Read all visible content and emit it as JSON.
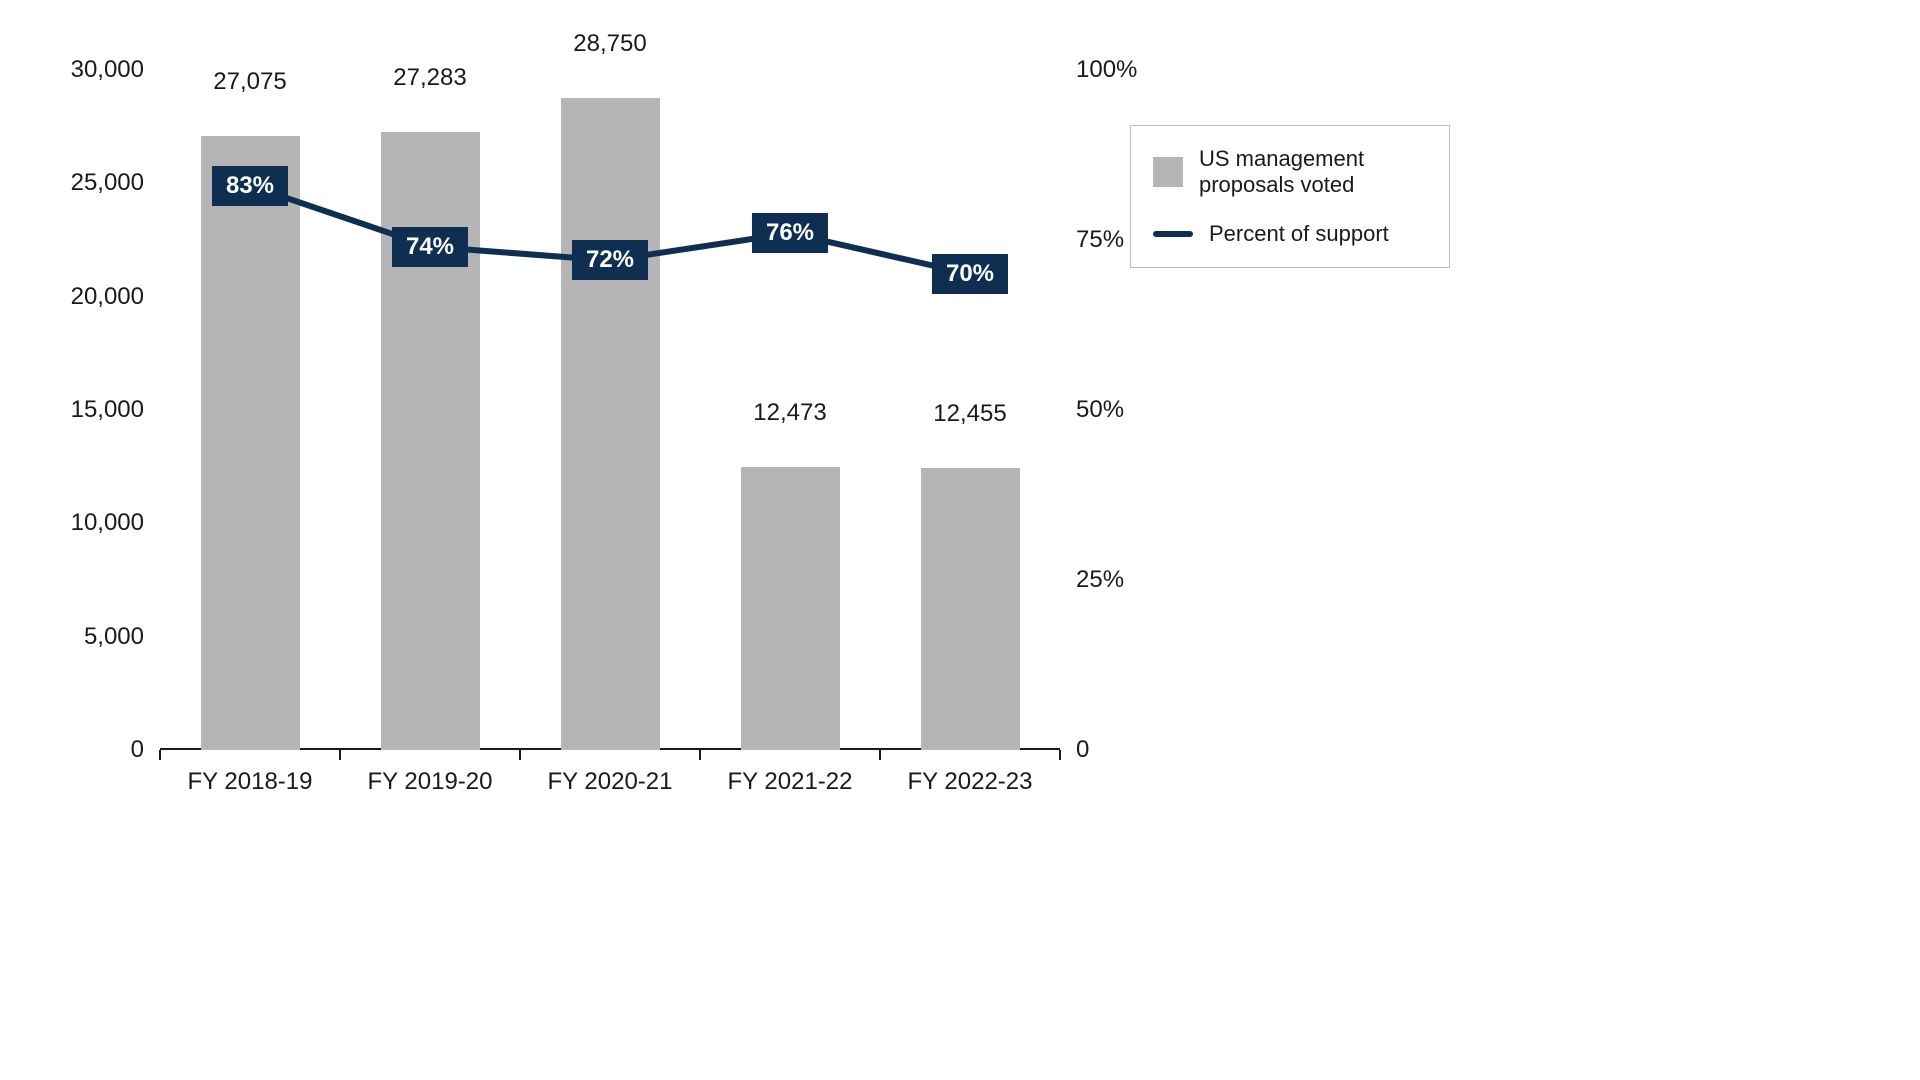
{
  "chart": {
    "type": "bar+line",
    "background_color": "#ffffff",
    "text_color": "#1a1a1a",
    "font_family": "sans-serif",
    "axis_fontsize": 24,
    "label_fontsize": 24,
    "x_axis": {
      "categories": [
        "FY 2018-19",
        "FY 2019-20",
        "FY 2020-21",
        "FY 2021-22",
        "FY 2022-23"
      ]
    },
    "y_left": {
      "min": 0,
      "max": 30000,
      "tick_step": 5000,
      "tick_labels": [
        "0",
        "5,000",
        "10,000",
        "15,000",
        "20,000",
        "25,000",
        "30,000"
      ]
    },
    "y_right": {
      "min": 0,
      "max": 100,
      "tick_step": 25,
      "tick_labels": [
        "0",
        "25%",
        "50%",
        "75%",
        "100%"
      ]
    },
    "bars": {
      "label": "US management proposals voted",
      "color": "#b5b5b5",
      "values": [
        27075,
        27283,
        28750,
        12473,
        12455
      ],
      "value_labels": [
        "27,075",
        "27,283",
        "28,750",
        "12,473",
        "12,455"
      ],
      "bar_width_fraction": 0.55
    },
    "line": {
      "label": "Percent of support",
      "color": "#0e2e52",
      "line_width": 6,
      "values": [
        83,
        74,
        72,
        76,
        70
      ],
      "value_labels": [
        "83%",
        "74%",
        "72%",
        "76%",
        "70%"
      ],
      "badge_bg": "#0e2e52",
      "badge_text_color": "#ffffff"
    },
    "legend": {
      "border_color": "#bfbfbf",
      "items": [
        {
          "kind": "bar",
          "label": "US management proposals voted"
        },
        {
          "kind": "line",
          "label": "Percent of support"
        }
      ]
    }
  }
}
